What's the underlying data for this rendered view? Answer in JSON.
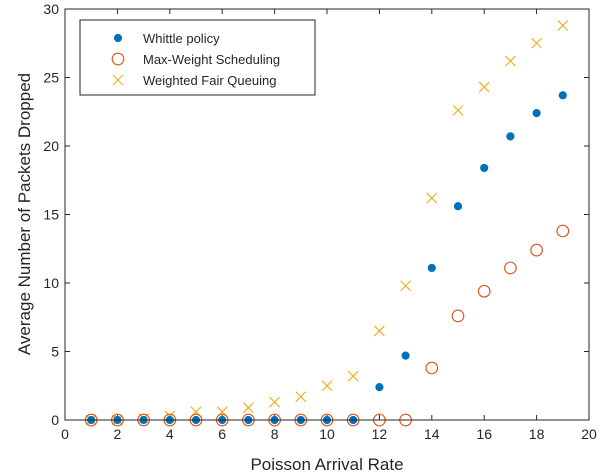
{
  "chart_data": {
    "type": "scatter",
    "xlabel": "Poisson Arrival Rate",
    "ylabel": "Average Number of Packets Dropped",
    "xlim": [
      0,
      20
    ],
    "ylim": [
      0,
      30
    ],
    "xticks": [
      0,
      2,
      4,
      6,
      8,
      10,
      12,
      14,
      16,
      18,
      20
    ],
    "yticks": [
      0,
      5,
      10,
      15,
      20,
      25,
      30
    ],
    "grid": false,
    "legend_position": "top-left",
    "series": [
      {
        "name": "Whittle policy",
        "marker": "filled-circle",
        "color": "#0072BD",
        "x": [
          1,
          2,
          3,
          4,
          5,
          6,
          7,
          8,
          9,
          10,
          11,
          12,
          13,
          14,
          15,
          16,
          17,
          18,
          19
        ],
        "y": [
          0,
          0,
          0,
          0,
          0,
          0,
          0,
          0,
          0,
          0,
          0,
          2.4,
          4.7,
          11.1,
          15.6,
          18.4,
          20.7,
          22.4,
          23.7
        ]
      },
      {
        "name": "Max-Weight Scheduling",
        "marker": "open-circle",
        "color": "#D95319",
        "x": [
          1,
          2,
          3,
          4,
          5,
          6,
          7,
          8,
          9,
          10,
          11,
          12,
          13,
          14,
          15,
          16,
          17,
          18,
          19
        ],
        "y": [
          0,
          0,
          0,
          0,
          0,
          0,
          0,
          0,
          0,
          0,
          0,
          0,
          0,
          3.8,
          7.6,
          9.4,
          11.1,
          12.4,
          13.8
        ]
      },
      {
        "name": "Weighted Fair Queuing",
        "marker": "x",
        "color": "#EDB120",
        "x": [
          1,
          2,
          3,
          4,
          5,
          6,
          7,
          8,
          9,
          10,
          11,
          12,
          13,
          14,
          15,
          16,
          17,
          18,
          19
        ],
        "y": [
          0,
          0,
          0.1,
          0.3,
          0.6,
          0.6,
          0.9,
          1.3,
          1.7,
          2.5,
          3.2,
          6.5,
          9.8,
          16.2,
          22.6,
          24.3,
          26.2,
          27.5,
          28.8
        ]
      }
    ]
  }
}
